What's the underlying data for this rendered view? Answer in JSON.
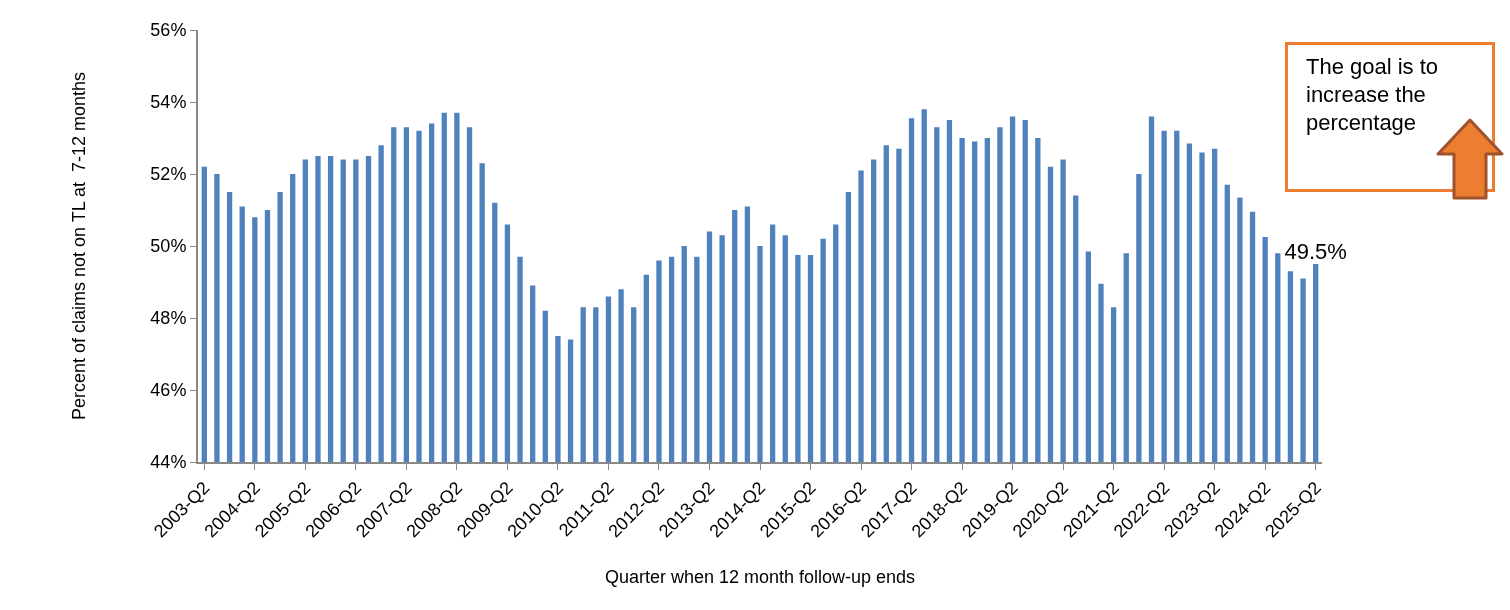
{
  "chart_data": {
    "type": "bar",
    "xlabel": "Quarter when 12 month follow-up ends",
    "ylabel": "Percent of claims not on TL at  7-12 months",
    "categories": [
      "2003-Q2",
      null,
      null,
      null,
      "2004-Q2",
      null,
      null,
      null,
      "2005-Q2",
      null,
      null,
      null,
      "2006-Q2",
      null,
      null,
      null,
      "2007-Q2",
      null,
      null,
      null,
      "2008-Q2",
      null,
      null,
      null,
      "2009-Q2",
      null,
      null,
      null,
      "2010-Q2",
      null,
      null,
      null,
      "2011-Q2",
      null,
      null,
      null,
      "2012-Q2",
      null,
      null,
      null,
      "2013-Q2",
      null,
      null,
      null,
      "2014-Q2",
      null,
      null,
      null,
      "2015-Q2",
      null,
      null,
      null,
      "2016-Q2",
      null,
      null,
      null,
      "2017-Q2",
      null,
      null,
      null,
      "2018-Q2",
      null,
      null,
      null,
      "2019-Q2",
      null,
      null,
      null,
      "2020-Q2",
      null,
      null,
      null,
      "2021-Q2",
      null,
      null,
      null,
      "2022-Q2",
      null,
      null,
      null,
      "2023-Q2",
      null,
      null,
      null,
      "2024-Q2",
      null,
      null,
      null,
      "2025-Q2"
    ],
    "values": [
      52.2,
      52.0,
      51.5,
      51.1,
      50.8,
      51.0,
      51.5,
      52.0,
      52.4,
      52.5,
      52.5,
      52.4,
      52.4,
      52.5,
      52.8,
      53.3,
      53.3,
      53.2,
      53.4,
      53.7,
      53.7,
      53.3,
      52.3,
      51.2,
      50.6,
      49.7,
      48.9,
      48.2,
      47.5,
      47.4,
      48.3,
      48.3,
      48.6,
      48.8,
      48.3,
      49.2,
      49.6,
      49.7,
      50.0,
      49.7,
      50.4,
      50.3,
      51.0,
      51.1,
      50.0,
      50.6,
      50.3,
      49.75,
      49.75,
      50.2,
      50.6,
      51.5,
      52.1,
      52.4,
      52.8,
      52.7,
      53.55,
      53.8,
      53.3,
      53.5,
      53.0,
      52.9,
      53.0,
      53.3,
      53.6,
      53.5,
      53.0,
      52.2,
      52.4,
      51.4,
      49.85,
      48.95,
      48.3,
      49.8,
      52.0,
      53.6,
      53.2,
      53.2,
      52.85,
      52.6,
      52.7,
      51.7,
      51.35,
      50.95,
      50.25,
      49.8,
      49.3,
      49.1,
      49.5
    ],
    "value_labels": [
      null,
      null,
      null,
      null,
      null,
      null,
      null,
      null,
      null,
      null,
      null,
      null,
      null,
      null,
      null,
      null,
      null,
      null,
      null,
      null,
      null,
      null,
      null,
      null,
      null,
      null,
      null,
      null,
      null,
      null,
      null,
      null,
      null,
      null,
      null,
      null,
      null,
      null,
      null,
      null,
      null,
      null,
      null,
      null,
      null,
      null,
      null,
      null,
      null,
      null,
      null,
      null,
      null,
      null,
      null,
      null,
      null,
      null,
      null,
      null,
      null,
      null,
      null,
      null,
      null,
      null,
      null,
      null,
      null,
      null,
      null,
      null,
      null,
      null,
      null,
      null,
      null,
      null,
      null,
      null,
      null,
      null,
      null,
      null,
      null,
      null,
      null,
      null,
      "49.5%"
    ],
    "color": "#4f81bd",
    "ylim": [
      44,
      56
    ],
    "yticks": [
      {
        "value": 44,
        "label": "44%"
      },
      {
        "value": 46,
        "label": "46%"
      },
      {
        "value": 48,
        "label": "48%"
      },
      {
        "value": 50,
        "label": "50%"
      },
      {
        "value": 52,
        "label": "52%"
      },
      {
        "value": 54,
        "label": "54%"
      },
      {
        "value": 56,
        "label": "56%"
      }
    ],
    "grid": false,
    "annotations": [
      "The goal is to increase the percentage"
    ]
  }
}
